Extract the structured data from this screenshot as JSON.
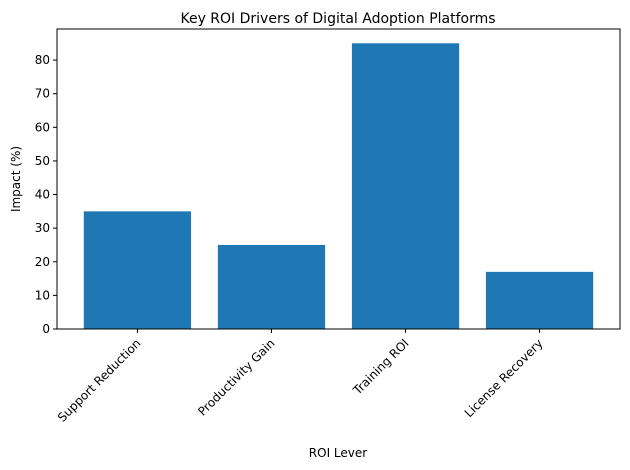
{
  "chart_data": {
    "type": "bar",
    "title": "Key ROI Drivers of Digital Adoption Platforms",
    "xlabel": "ROI Lever",
    "ylabel": "Impact (%)",
    "categories": [
      "Support Reduction",
      "Productivity Gain",
      "Training ROI",
      "License Recovery"
    ],
    "values": [
      35,
      25,
      85,
      17
    ],
    "ylim": [
      0,
      89.25
    ],
    "yticks": [
      0,
      10,
      20,
      30,
      40,
      50,
      60,
      70,
      80
    ],
    "grid": false,
    "bar_color": "#1f77b4"
  }
}
